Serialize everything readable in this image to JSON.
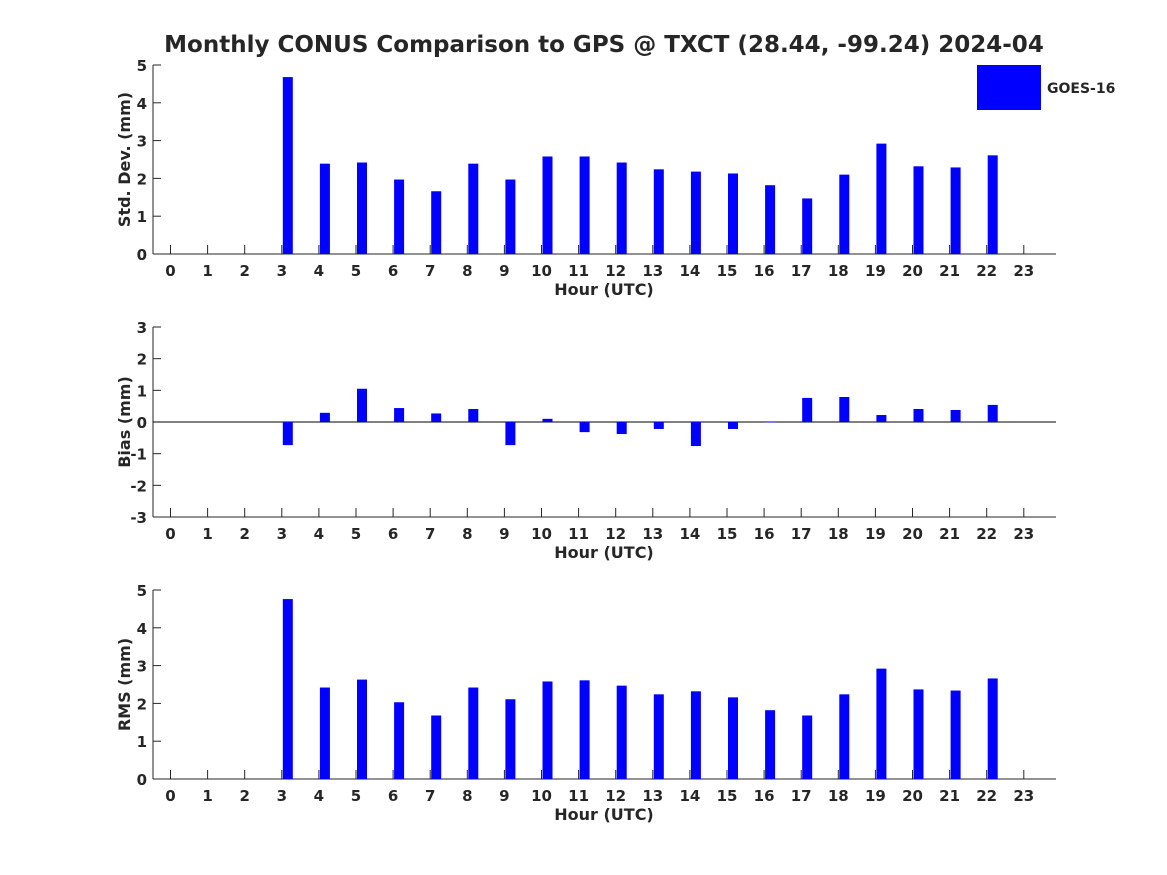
{
  "title": "Monthly CONUS Comparison to GPS @ TXCT (28.44, -99.24) 2024-04",
  "legend": {
    "label": "GOES-16",
    "color": "#0000ff",
    "placement": "top-right"
  },
  "bar_color": "#0000ff",
  "chart_data": [
    {
      "type": "bar",
      "xlabel": "Hour (UTC)",
      "ylabel": "Std. Dev. (mm)",
      "ylim": [
        0,
        5
      ],
      "yticks": [
        0,
        1,
        2,
        3,
        4,
        5
      ],
      "categories": [
        "0",
        "1",
        "2",
        "3",
        "4",
        "5",
        "6",
        "7",
        "8",
        "9",
        "10",
        "11",
        "12",
        "13",
        "14",
        "15",
        "16",
        "17",
        "18",
        "19",
        "20",
        "21",
        "22",
        "23"
      ],
      "series": [
        {
          "name": "GOES-16",
          "values": [
            null,
            null,
            null,
            4.68,
            2.39,
            2.42,
            1.97,
            1.66,
            2.39,
            1.97,
            2.58,
            2.58,
            2.42,
            2.24,
            2.18,
            2.13,
            1.82,
            1.47,
            2.1,
            2.92,
            2.32,
            2.29,
            2.61,
            null
          ]
        }
      ],
      "grid": false
    },
    {
      "type": "bar",
      "xlabel": "Hour (UTC)",
      "ylabel": "Bias (mm)",
      "ylim": [
        -3,
        3
      ],
      "yticks": [
        -3,
        -2,
        -1,
        0,
        1,
        2,
        3
      ],
      "categories": [
        "0",
        "1",
        "2",
        "3",
        "4",
        "5",
        "6",
        "7",
        "8",
        "9",
        "10",
        "11",
        "12",
        "13",
        "14",
        "15",
        "16",
        "17",
        "18",
        "19",
        "20",
        "21",
        "22",
        "23"
      ],
      "series": [
        {
          "name": "GOES-16",
          "values": [
            null,
            null,
            null,
            -0.73,
            0.29,
            1.05,
            0.44,
            0.27,
            0.41,
            -0.73,
            0.1,
            -0.32,
            -0.38,
            -0.22,
            -0.76,
            -0.22,
            0.0,
            0.76,
            0.79,
            0.22,
            0.41,
            0.38,
            0.54,
            null
          ]
        }
      ],
      "zero_line": true,
      "grid": false
    },
    {
      "type": "bar",
      "xlabel": "Hour (UTC)",
      "ylabel": "RMS (mm)",
      "ylim": [
        0,
        5
      ],
      "yticks": [
        0,
        1,
        2,
        3,
        4,
        5
      ],
      "categories": [
        "0",
        "1",
        "2",
        "3",
        "4",
        "5",
        "6",
        "7",
        "8",
        "9",
        "10",
        "11",
        "12",
        "13",
        "14",
        "15",
        "16",
        "17",
        "18",
        "19",
        "20",
        "21",
        "22",
        "23"
      ],
      "series": [
        {
          "name": "GOES-16",
          "values": [
            null,
            null,
            null,
            4.76,
            2.42,
            2.63,
            2.03,
            1.68,
            2.42,
            2.11,
            2.58,
            2.61,
            2.47,
            2.24,
            2.32,
            2.16,
            1.82,
            1.68,
            2.24,
            2.92,
            2.37,
            2.34,
            2.66,
            null
          ]
        }
      ],
      "grid": false
    }
  ]
}
